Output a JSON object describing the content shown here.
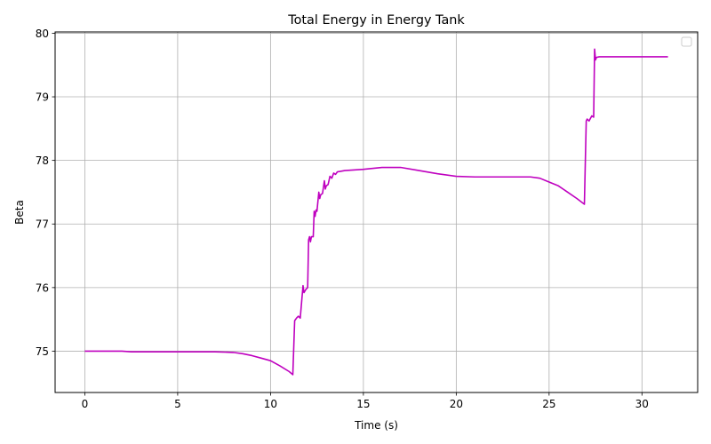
{
  "chart_data": {
    "type": "line",
    "title": "Total Energy in Energy Tank",
    "xlabel": "Time (s)",
    "ylabel": "Beta",
    "xlim": [
      -1.6,
      33.0
    ],
    "ylim": [
      74.35,
      80.02
    ],
    "x_ticks": [
      0,
      5,
      10,
      15,
      20,
      25,
      30
    ],
    "y_ticks": [
      75,
      76,
      77,
      78,
      79,
      80
    ],
    "grid": true,
    "legend": "top-right, empty",
    "series": [
      {
        "color": "#bf00bf",
        "x": [
          0,
          1,
          2,
          2.5,
          3,
          4,
          5,
          6,
          7,
          8,
          8.5,
          9,
          9.5,
          10,
          10.5,
          11,
          11.2,
          11.3,
          11.4,
          11.5,
          11.6,
          11.75,
          11.8,
          11.9,
          12.0,
          12.05,
          12.1,
          12.15,
          12.2,
          12.3,
          12.35,
          12.4,
          12.45,
          12.5,
          12.6,
          12.65,
          12.7,
          12.8,
          12.9,
          12.95,
          13.0,
          13.1,
          13.2,
          13.3,
          13.4,
          13.5,
          13.6,
          13.8,
          14,
          15,
          16,
          16.5,
          17,
          18,
          19,
          20,
          21,
          22,
          23,
          24,
          24.5,
          25,
          25.5,
          26,
          26.5,
          26.9,
          27.0,
          27.05,
          27.15,
          27.3,
          27.4,
          27.45,
          27.5,
          27.55,
          27.7,
          28,
          29,
          30,
          31,
          31.4
        ],
        "y": [
          75.0,
          75.0,
          75.0,
          74.99,
          74.99,
          74.99,
          74.99,
          74.99,
          74.99,
          74.98,
          74.96,
          74.93,
          74.89,
          74.85,
          74.77,
          74.68,
          74.63,
          75.48,
          75.52,
          75.55,
          75.52,
          76.03,
          75.92,
          75.97,
          76.0,
          76.75,
          76.8,
          76.72,
          76.8,
          76.8,
          77.2,
          77.12,
          77.22,
          77.2,
          77.5,
          77.4,
          77.46,
          77.48,
          77.68,
          77.55,
          77.6,
          77.62,
          77.75,
          77.72,
          77.8,
          77.78,
          77.82,
          77.83,
          77.84,
          77.86,
          77.89,
          77.89,
          77.89,
          77.84,
          77.79,
          77.75,
          77.74,
          77.74,
          77.74,
          77.74,
          77.72,
          77.66,
          77.6,
          77.5,
          77.4,
          77.31,
          78.62,
          78.65,
          78.62,
          78.7,
          78.68,
          79.75,
          79.58,
          79.62,
          79.63,
          79.63,
          79.63,
          79.63,
          79.63,
          79.63
        ]
      }
    ]
  }
}
